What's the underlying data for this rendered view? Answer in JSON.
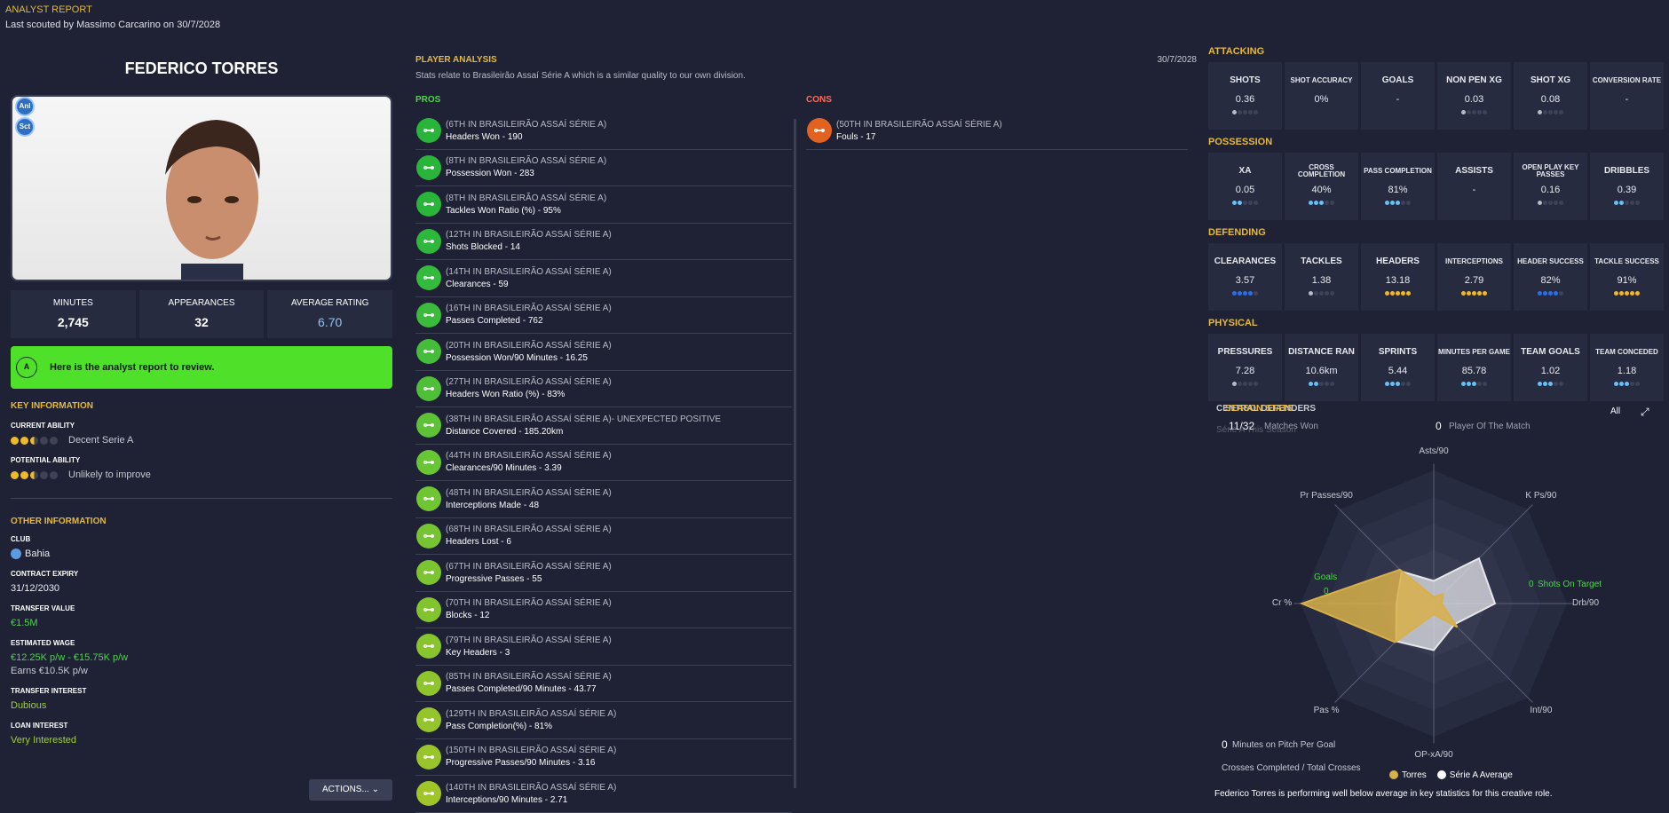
{
  "header": {
    "title": "ANALYST REPORT",
    "subtitle": "Last scouted by Massimo Carcarino on 30/7/2028"
  },
  "player": {
    "name": "FEDERICO TORRES",
    "badges": [
      "Anl",
      "Sct"
    ]
  },
  "stats": [
    {
      "label": "MINUTES",
      "value": "2,745"
    },
    {
      "label": "APPEARANCES",
      "value": "32"
    },
    {
      "label": "AVERAGE RATING",
      "value": "6.70"
    }
  ],
  "notice": {
    "icon_letter": "A",
    "text": "Here is the analyst report to review."
  },
  "key_info": {
    "title": "KEY INFORMATION",
    "current_label": "CURRENT ABILITY",
    "current_text": "Decent Serie A",
    "potential_label": "POTENTIAL ABILITY",
    "potential_text": "Unlikely to improve"
  },
  "other_info": {
    "title": "OTHER INFORMATION",
    "club_label": "CLUB",
    "club": "Bahia",
    "contract_label": "CONTRACT EXPIRY",
    "contract": "31/12/2030",
    "transfer_label": "TRANSFER VALUE",
    "transfer": "€1.5M",
    "wage_label": "ESTIMATED WAGE",
    "wage": "€12.25K p/w - €15.75K p/w",
    "earns": "Earns €10.5K p/w",
    "interest_label": "TRANSFER INTEREST",
    "interest": "Dubious",
    "loan_label": "LOAN INTEREST",
    "loan": "Very Interested"
  },
  "actions_label": "ACTIONS...",
  "analysis": {
    "title": "PLAYER ANALYSIS",
    "date": "30/7/2028",
    "desc": "Stats relate to Brasileirão Assaí Série A which is a similar quality to our own division.",
    "pros_title": "PROS",
    "cons_title": "CONS"
  },
  "pros": [
    {
      "rank": "(6TH IN BRASILEIRÃO ASSAÍ SÉRIE A)",
      "stat": "Headers Won - 190"
    },
    {
      "rank": "(8TH IN BRASILEIRÃO ASSAÍ SÉRIE A)",
      "stat": "Possession Won - 283"
    },
    {
      "rank": "(8TH IN BRASILEIRÃO ASSAÍ SÉRIE A)",
      "stat": "Tackles Won Ratio (%) - 95%"
    },
    {
      "rank": "(12TH IN BRASILEIRÃO ASSAÍ SÉRIE A)",
      "stat": "Shots Blocked - 14"
    },
    {
      "rank": "(14TH IN BRASILEIRÃO ASSAÍ SÉRIE A)",
      "stat": "Clearances - 59"
    },
    {
      "rank": "(16TH IN BRASILEIRÃO ASSAÍ SÉRIE A)",
      "stat": "Passes Completed - 762"
    },
    {
      "rank": "(20TH IN BRASILEIRÃO ASSAÍ SÉRIE A)",
      "stat": "Possession Won/90 Minutes - 16.25"
    },
    {
      "rank": "(27TH IN BRASILEIRÃO ASSAÍ SÉRIE A)",
      "stat": "Headers Won Ratio (%) - 83%"
    },
    {
      "rank": "(38TH IN BRASILEIRÃO ASSAÍ SÉRIE A)- UNEXPECTED POSITIVE",
      "stat": "Distance Covered - 185.20km"
    },
    {
      "rank": "(44TH IN BRASILEIRÃO ASSAÍ SÉRIE A)",
      "stat": "Clearances/90 Minutes - 3.39"
    },
    {
      "rank": "(48TH IN BRASILEIRÃO ASSAÍ SÉRIE A)",
      "stat": "Interceptions Made - 48"
    },
    {
      "rank": "(68TH IN BRASILEIRÃO ASSAÍ SÉRIE A)",
      "stat": "Headers Lost - 6"
    },
    {
      "rank": "(67TH IN BRASILEIRÃO ASSAÍ SÉRIE A)",
      "stat": "Progressive Passes - 55"
    },
    {
      "rank": "(70TH IN BRASILEIRÃO ASSAÍ SÉRIE A)",
      "stat": "Blocks - 12"
    },
    {
      "rank": "(79TH IN BRASILEIRÃO ASSAÍ SÉRIE A)",
      "stat": "Key Headers - 3"
    },
    {
      "rank": "(85TH IN BRASILEIRÃO ASSAÍ SÉRIE A)",
      "stat": "Passes Completed/90 Minutes - 43.77"
    },
    {
      "rank": "(129TH IN BRASILEIRÃO ASSAÍ SÉRIE A)",
      "stat": "Pass Completion(%) - 81%"
    },
    {
      "rank": "(150TH IN BRASILEIRÃO ASSAÍ SÉRIE A)",
      "stat": "Progressive Passes/90 Minutes - 3.16"
    },
    {
      "rank": "(140TH IN BRASILEIRÃO ASSAÍ SÉRIE A)",
      "stat": "Interceptions/90 Minutes - 2.71"
    }
  ],
  "cons": [
    {
      "rank": "(50TH IN BRASILEIRÃO ASSAÍ SÉRIE A)",
      "stat": "Fouls - 17"
    }
  ],
  "categories": [
    {
      "title": "ATTACKING",
      "cards": [
        {
          "label": "SHOTS",
          "value": "0.36",
          "dots": "w"
        },
        {
          "label": "SHOT ACCURACY",
          "value": "0%",
          "dots": ""
        },
        {
          "label": "GOALS",
          "value": "-",
          "dots": ""
        },
        {
          "label": "NON PEN XG",
          "value": "0.03",
          "dots": "w"
        },
        {
          "label": "SHOT XG",
          "value": "0.08",
          "dots": "w"
        },
        {
          "label": "CONVERSION RATE",
          "value": "-",
          "dots": ""
        }
      ]
    },
    {
      "title": "POSSESSION",
      "cards": [
        {
          "label": "XA",
          "value": "0.05",
          "dots": "bb"
        },
        {
          "label": "CROSS COMPLETION",
          "value": "40%",
          "dots": "bbb"
        },
        {
          "label": "PASS COMPLETION",
          "value": "81%",
          "dots": "bbb"
        },
        {
          "label": "ASSISTS",
          "value": "-",
          "dots": ""
        },
        {
          "label": "OPEN PLAY KEY PASSES",
          "value": "0.16",
          "dots": "w"
        },
        {
          "label": "DRIBBLES",
          "value": "0.39",
          "dots": "bb"
        }
      ]
    },
    {
      "title": "DEFENDING",
      "cards": [
        {
          "label": "CLEARANCES",
          "value": "3.57",
          "dots": "dddd"
        },
        {
          "label": "TACKLES",
          "value": "1.38",
          "dots": "w"
        },
        {
          "label": "HEADERS",
          "value": "13.18",
          "dots": "yyyyy"
        },
        {
          "label": "INTERCEPTIONS",
          "value": "2.79",
          "dots": "yyyyy"
        },
        {
          "label": "HEADER SUCCESS",
          "value": "82%",
          "dots": "dddd"
        },
        {
          "label": "TACKLE SUCCESS",
          "value": "91%",
          "dots": "yyyyy"
        }
      ]
    },
    {
      "title": "PHYSICAL",
      "cards": [
        {
          "label": "PRESSURES",
          "value": "7.28",
          "dots": "w"
        },
        {
          "label": "DISTANCE RAN",
          "value": "10.6km",
          "dots": "bb"
        },
        {
          "label": "SPRINTS",
          "value": "5.44",
          "dots": "bbb"
        },
        {
          "label": "MINUTES PER GAME",
          "value": "85.78",
          "dots": "bbb"
        },
        {
          "label": "TEAM GOALS",
          "value": "1.02",
          "dots": "bbb"
        },
        {
          "label": "TEAM CONCEDED",
          "value": "1.18",
          "dots": "bbb"
        }
      ]
    }
  ],
  "radar": {
    "title": "SEASON STATS",
    "title_under": "CENTRAL DEFENDERS",
    "filter": "All",
    "matches_value": "11/32",
    "matches_label": "Matches Won",
    "season_text": "Série A This Season",
    "pom_value": "0",
    "pom_label": "Player Of The Match",
    "goals_label": "Goals",
    "goals_value": "0",
    "sot_value": "0",
    "sot_label": "Shots On Target",
    "mins_value": "0",
    "mins_label": "Minutes on Pitch Per Goal",
    "crosses_label": "Crosses Completed / Total Crosses",
    "legend_player": "Torres",
    "legend_avg": "Série A Average",
    "footer": "Federico Torres is performing well below average in key statistics for this creative role.",
    "colors": {
      "player": "#d8b04a",
      "average": "#e6e6ea"
    }
  },
  "chart_data": {
    "type": "radar",
    "axes": [
      "Asts/90",
      "K Ps/90",
      "Drb/90",
      "Int/90",
      "OP-xA/90",
      "Pas %",
      "Cr %",
      "Pr Passes/90"
    ],
    "series": [
      {
        "name": "Torres",
        "values": [
          0.05,
          0.1,
          0.06,
          0.25,
          0.08,
          0.41,
          0.99,
          0.36
        ]
      },
      {
        "name": "Série A Average",
        "values": [
          0.17,
          0.48,
          0.46,
          0.22,
          0.35,
          0.4,
          0.28,
          0.34
        ]
      }
    ]
  }
}
